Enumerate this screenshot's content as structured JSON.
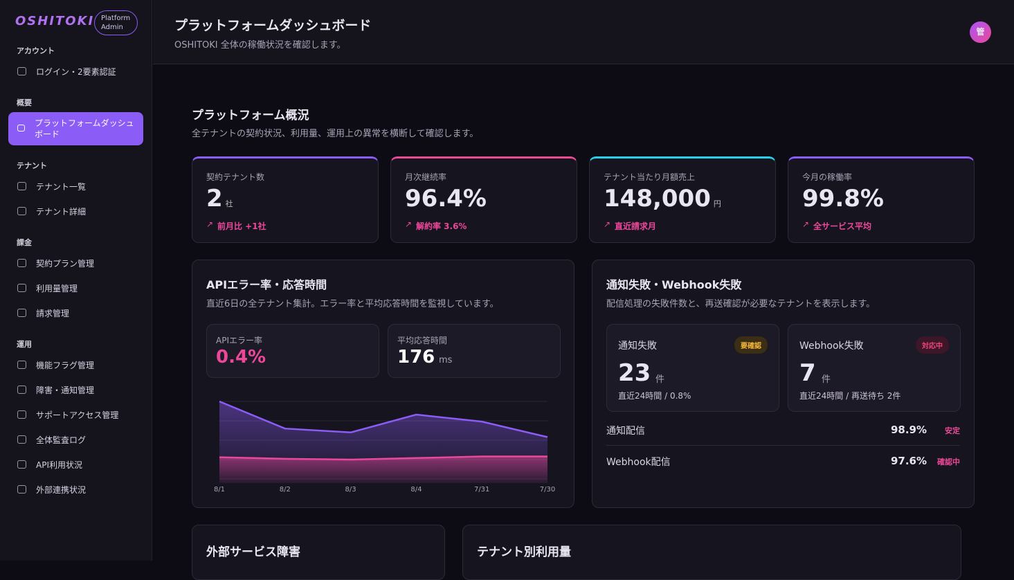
{
  "sidebar": {
    "brand": "OSHITOKI",
    "badge": "Platform Admin",
    "sections": [
      {
        "title": "アカウント",
        "items": [
          "ログイン・2要素認証"
        ]
      },
      {
        "title": "概要",
        "items": [
          "プラットフォームダッシュボード"
        ]
      },
      {
        "title": "テナント",
        "items": [
          "テナント一覧",
          "テナント詳細"
        ]
      },
      {
        "title": "課金",
        "items": [
          "契約プラン管理",
          "利用量管理",
          "請求管理"
        ]
      },
      {
        "title": "運用",
        "items": [
          "機能フラグ管理",
          "障害・通知管理",
          "サポートアクセス管理",
          "全体監査ログ",
          "API利用状況",
          "外部連携状況"
        ]
      }
    ]
  },
  "header": {
    "title": "プラットフォームダッシュボード",
    "subtitle": "OSHITOKI 全体の稼働状況を確認します。",
    "avatar": "管"
  },
  "overview": {
    "title": "プラットフォーム概況",
    "subtitle": "全テナントの契約状況、利用量、運用上の異常を横断して確認します。",
    "kpis": [
      {
        "label": "契約テナント数",
        "value": "2",
        "unit": "社",
        "delta": "前月比 +1社"
      },
      {
        "label": "月次継続率",
        "value": "96.4%",
        "delta": "解約率 3.6%"
      },
      {
        "label": "テナント当たり月額売上",
        "value": "148,000",
        "unit": "円",
        "delta": "直近請求月"
      },
      {
        "label": "今月の稼働率",
        "value": "99.8%",
        "delta": "全サービス平均"
      }
    ]
  },
  "api_panel": {
    "title": "APIエラー率・応答時間",
    "desc": "直近6日の全テナント集計。エラー率と平均応答時間を監視しています。",
    "stats": [
      {
        "label": "APIエラー率",
        "value": "0.4%"
      },
      {
        "label": "平均応答時間",
        "value": "176",
        "unit": "ms"
      }
    ]
  },
  "chart_data": {
    "type": "area",
    "categories": [
      "8/1",
      "8/2",
      "8/3",
      "8/4",
      "7/31",
      "7/30"
    ],
    "ylim": [
      0,
      100
    ],
    "series": [
      {
        "color": "#8b5cf6",
        "values": [
          100,
          65,
          60,
          83,
          74,
          54
        ]
      },
      {
        "color": "#ec4899",
        "values": [
          28,
          26,
          25,
          27,
          29,
          29
        ]
      }
    ]
  },
  "notify_panel": {
    "title": "通知失敗・Webhook失敗",
    "desc": "配信処理の失敗件数と、再送確認が必要なテナントを表示します。",
    "cards": [
      {
        "label": "通知失敗",
        "badge": "要確認",
        "value": "23",
        "unit": "件",
        "note": "直近24時間 / 0.8%"
      },
      {
        "label": "Webhook失敗",
        "badge": "対応中",
        "value": "7",
        "unit": "件",
        "note": "直近24時間 / 再送待ち 2件"
      }
    ],
    "rows": [
      {
        "label": "通知配信",
        "value": "98.9%",
        "status": "安定"
      },
      {
        "label": "Webhook配信",
        "value": "97.6%",
        "status": "確認中"
      }
    ]
  },
  "bottom": {
    "outage_title": "外部サービス障害",
    "usage_title": "テナント別利用量"
  }
}
